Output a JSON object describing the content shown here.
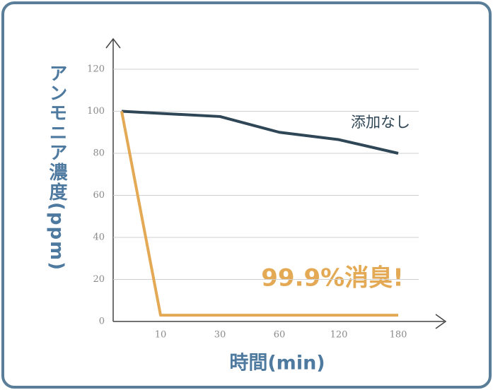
{
  "chart_data": {
    "type": "line",
    "y_label": "アンモニア濃度(ppm)",
    "x_label": "時間(min)",
    "annotation": "99.9%消臭!",
    "categories": [
      null,
      "10",
      "30",
      "60",
      "120",
      "180"
    ],
    "series": [
      {
        "name": "添加なし",
        "color": "#2f4656",
        "values": [
          100,
          99,
          97.5,
          90,
          86.5,
          80
        ]
      },
      {
        "color": "#e3a955",
        "values": [
          100,
          3,
          3,
          3,
          3,
          3
        ]
      }
    ],
    "ylim": [
      0,
      120
    ],
    "yticks": [
      0,
      20,
      40,
      60,
      80,
      100,
      120
    ],
    "grid": true
  }
}
